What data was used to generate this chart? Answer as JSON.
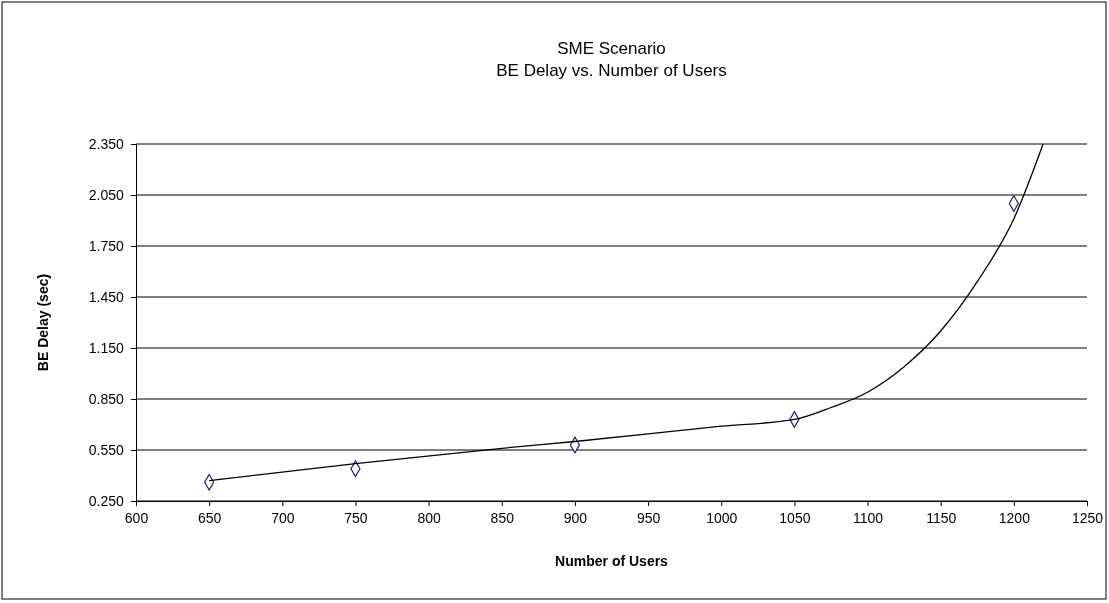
{
  "chart_data": {
    "type": "scatter",
    "title": "SME Scenario",
    "subtitle": "BE Delay  vs. Number of Users",
    "xlabel": "Number of Users",
    "ylabel": "BE Delay (sec)",
    "xlim": [
      600,
      1250
    ],
    "xticks": [
      600,
      650,
      700,
      750,
      800,
      850,
      900,
      950,
      1000,
      1050,
      1100,
      1150,
      1200,
      1250
    ],
    "ylim": [
      0.25,
      2.35
    ],
    "yticks": [
      {
        "value": 0.25,
        "label": "0.250"
      },
      {
        "value": 0.55,
        "label": "0.550"
      },
      {
        "value": 0.85,
        "label": "0.850"
      },
      {
        "value": 1.15,
        "label": "1.150"
      },
      {
        "value": 1.45,
        "label": "1.450"
      },
      {
        "value": 1.75,
        "label": "1.750"
      },
      {
        "value": 2.05,
        "label": "2.050"
      },
      {
        "value": 2.35,
        "label": "2.350"
      }
    ],
    "grid": "y",
    "series": [
      {
        "color": "#1f1f7a",
        "marker": "diamond",
        "x": [
          650,
          750,
          900,
          1050,
          1200
        ],
        "values": [
          0.36,
          0.44,
          0.58,
          0.73,
          2.0
        ]
      },
      {
        "type": "line",
        "color": "#000000",
        "marker": "none",
        "line_style": "solid",
        "x": [
          650,
          750,
          850,
          900,
          1000,
          1050,
          1075,
          1100,
          1125,
          1150,
          1175,
          1200,
          1220
        ],
        "values": [
          0.37,
          0.47,
          0.56,
          0.6,
          0.69,
          0.73,
          0.8,
          0.89,
          1.04,
          1.25,
          1.54,
          1.91,
          2.35
        ]
      }
    ]
  }
}
